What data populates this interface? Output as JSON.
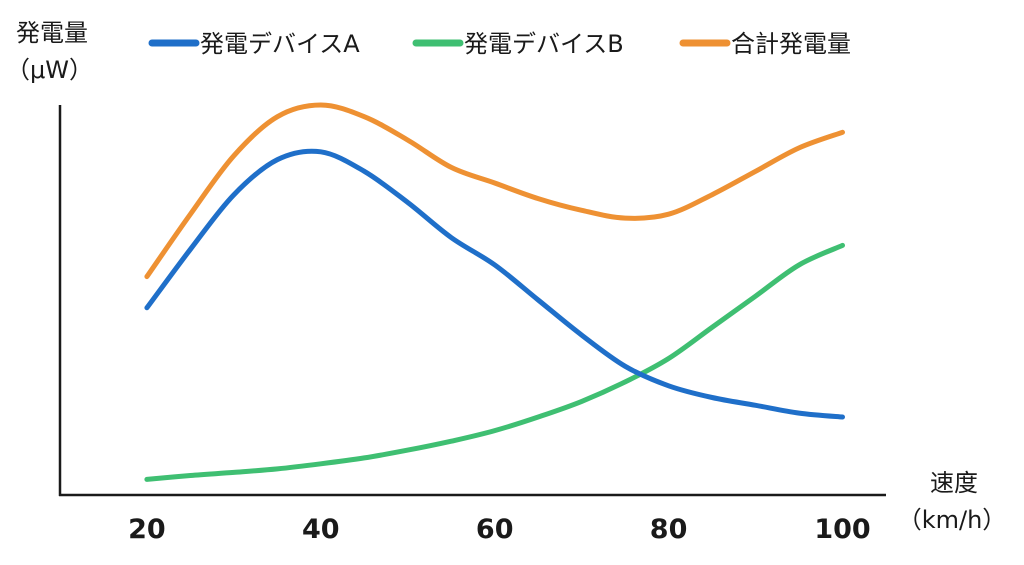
{
  "chart_data": {
    "type": "line",
    "ylabel_line1": "発電量",
    "ylabel_line2": "（μW）",
    "xlabel_line1": "速度",
    "xlabel_line2": "（km/h）",
    "categories": [
      "20",
      "40",
      "60",
      "80",
      "100"
    ],
    "x": [
      20,
      25,
      30,
      35,
      40,
      45,
      50,
      55,
      60,
      65,
      70,
      75,
      80,
      85,
      90,
      95,
      100
    ],
    "xlim": [
      10,
      105
    ],
    "ylim": [
      0,
      100
    ],
    "y_ticks_shown": false,
    "grid": false,
    "legend_position": "top",
    "series": [
      {
        "name": "発電デバイスA",
        "color": "#1f6fc9",
        "values": [
          48,
          63,
          77,
          86,
          88,
          83,
          75,
          66,
          59,
          50,
          41,
          33,
          28,
          25,
          23,
          21,
          20
        ]
      },
      {
        "name": "発電デバイスB",
        "color": "#3fbf72",
        "values": [
          4,
          5,
          5.8,
          6.7,
          8,
          9.5,
          11.5,
          13.8,
          16.5,
          20,
          24,
          29,
          35,
          43,
          51,
          59,
          64
        ]
      },
      {
        "name": "合計発電量",
        "color": "#ee9133",
        "values": [
          56,
          72,
          87,
          97,
          100,
          97,
          91,
          84,
          80,
          76,
          73,
          71,
          72,
          77,
          83,
          89,
          93
        ]
      }
    ]
  }
}
